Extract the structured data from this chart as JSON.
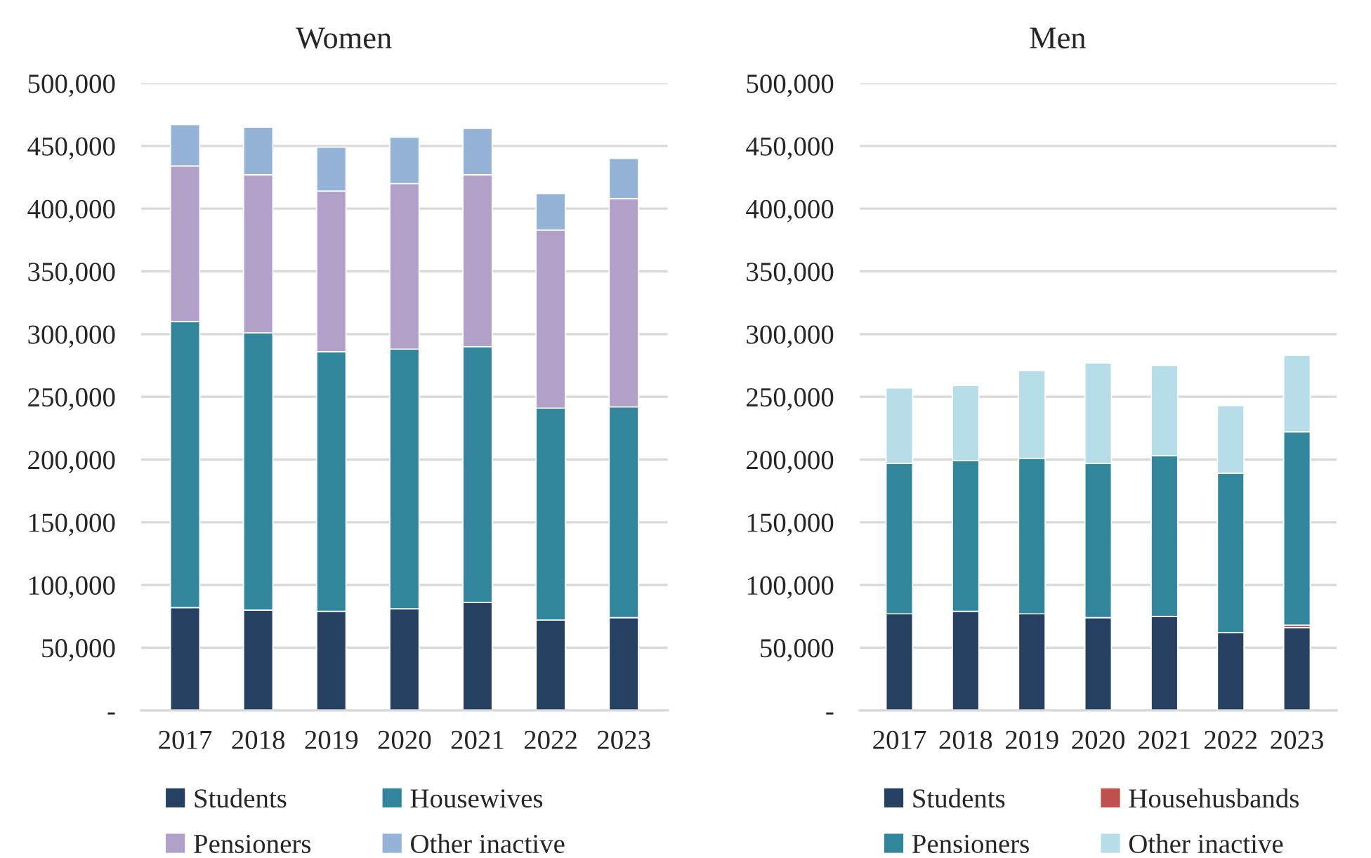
{
  "chart_data": [
    {
      "type": "bar",
      "title": "Women",
      "categories": [
        "2017",
        "2018",
        "2019",
        "2020",
        "2021",
        "2022",
        "2023"
      ],
      "stacked": true,
      "series": [
        {
          "name": "Students",
          "color": "#254061",
          "values": [
            82000,
            80000,
            79000,
            81000,
            86000,
            72000,
            74000
          ]
        },
        {
          "name": "Housewives",
          "color": "#31869b",
          "values": [
            228000,
            221000,
            207000,
            207000,
            204000,
            169000,
            168000
          ]
        },
        {
          "name": "Pensioners",
          "color": "#b1a0c7",
          "values": [
            124000,
            126000,
            128000,
            132000,
            137000,
            142000,
            166000
          ]
        },
        {
          "name": "Other inactive",
          "color": "#95b3d7",
          "values": [
            33000,
            38000,
            35000,
            37000,
            37000,
            29000,
            32000
          ]
        }
      ],
      "ylim": [
        0,
        500000
      ],
      "yticks": [
        {
          "value": 0,
          "label": "-"
        },
        {
          "value": 50000,
          "label": "50,000"
        },
        {
          "value": 100000,
          "label": "100,000"
        },
        {
          "value": 150000,
          "label": "150,000"
        },
        {
          "value": 200000,
          "label": "200,000"
        },
        {
          "value": 250000,
          "label": "250,000"
        },
        {
          "value": 300000,
          "label": "300,000"
        },
        {
          "value": 350000,
          "label": "350,000"
        },
        {
          "value": 400000,
          "label": "400,000"
        },
        {
          "value": 450000,
          "label": "450,000"
        },
        {
          "value": 500000,
          "label": "500,000"
        }
      ],
      "grid": "y",
      "legend": "bottom"
    },
    {
      "type": "bar",
      "title": "Men",
      "categories": [
        "2017",
        "2018",
        "2019",
        "2020",
        "2021",
        "2022",
        "2023"
      ],
      "stacked": true,
      "series": [
        {
          "name": "Students",
          "color": "#254061",
          "values": [
            77000,
            79000,
            77000,
            74000,
            75000,
            62000,
            66000
          ]
        },
        {
          "name": "Househusbands",
          "color": "#c0504d",
          "values": [
            null,
            null,
            null,
            null,
            null,
            null,
            2000
          ]
        },
        {
          "name": "Pensioners",
          "color": "#31869b",
          "values": [
            120000,
            120000,
            124000,
            123000,
            128000,
            127000,
            154000
          ]
        },
        {
          "name": "Other inactive",
          "color": "#b7dde8",
          "values": [
            60000,
            60000,
            70000,
            80000,
            72000,
            54000,
            61000
          ]
        }
      ],
      "ylim": [
        0,
        500000
      ],
      "yticks": [
        {
          "value": 0,
          "label": "-"
        },
        {
          "value": 50000,
          "label": "50,000"
        },
        {
          "value": 100000,
          "label": "100,000"
        },
        {
          "value": 150000,
          "label": "150,000"
        },
        {
          "value": 200000,
          "label": "200,000"
        },
        {
          "value": 250000,
          "label": "250,000"
        },
        {
          "value": 300000,
          "label": "300,000"
        },
        {
          "value": 350000,
          "label": "350,000"
        },
        {
          "value": 400000,
          "label": "400,000"
        },
        {
          "value": 450000,
          "label": "450,000"
        },
        {
          "value": 500000,
          "label": "500,000"
        }
      ],
      "grid": "y",
      "legend": "bottom"
    }
  ]
}
